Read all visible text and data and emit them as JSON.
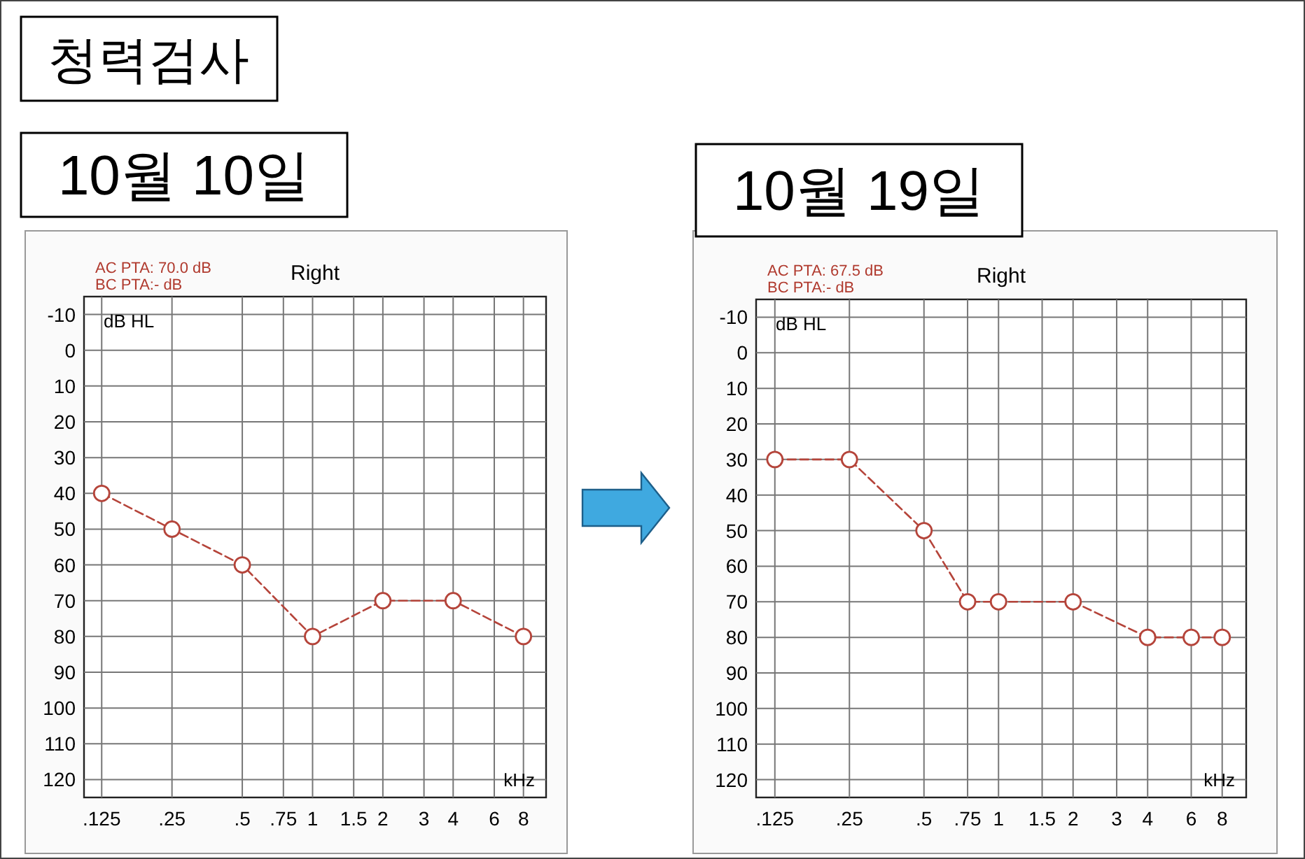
{
  "chart_data": [
    {
      "type": "line",
      "title": "10월 10일",
      "subtitle": "Right",
      "xlabel": "kHz",
      "ylabel": "dB HL",
      "annotations": [
        "청력검사",
        "AC PTA: 70.0 dB",
        "BC PTA:- dB"
      ],
      "log": "x",
      "xlim": [
        0.105,
        10
      ],
      "ylim": [
        125,
        -15
      ],
      "xticks": [
        {
          "value": 0.125,
          "label": ".125"
        },
        {
          "value": 0.25,
          "label": ".25"
        },
        {
          "value": 0.5,
          "label": ".5"
        },
        {
          "value": 0.75,
          "label": ".75"
        },
        1,
        1.5,
        2,
        3,
        4,
        6,
        8
      ],
      "yticks": [
        -10,
        0,
        10,
        20,
        30,
        40,
        50,
        60,
        70,
        80,
        90,
        100,
        110,
        120
      ],
      "grid": true,
      "marker": "circle",
      "line_style": "dashed",
      "series": [
        {
          "color": "#b5443a",
          "x": [
            0.125,
            0.25,
            0.5,
            1,
            2,
            4,
            8
          ],
          "values": [
            40,
            50,
            60,
            80,
            70,
            70,
            80
          ]
        }
      ]
    },
    {
      "type": "line",
      "title": "10월 19일",
      "subtitle": "Right",
      "xlabel": "kHz",
      "ylabel": "dB HL",
      "annotations": [
        "AC PTA: 67.5 dB",
        "BC PTA:- dB"
      ],
      "log": "x",
      "xlim": [
        0.105,
        10
      ],
      "ylim": [
        125,
        -15
      ],
      "xticks": [
        {
          "value": 0.125,
          "label": ".125"
        },
        {
          "value": 0.25,
          "label": ".25"
        },
        {
          "value": 0.5,
          "label": ".5"
        },
        {
          "value": 0.75,
          "label": ".75"
        },
        1,
        1.5,
        2,
        3,
        4,
        6,
        8
      ],
      "yticks": [
        -10,
        0,
        10,
        20,
        30,
        40,
        50,
        60,
        70,
        80,
        90,
        100,
        110,
        120
      ],
      "grid": true,
      "marker": "circle",
      "line_style": "dashed",
      "series": [
        {
          "color": "#b5443a",
          "x": [
            0.125,
            0.25,
            0.5,
            0.75,
            1,
            2,
            4,
            6,
            8
          ],
          "values": [
            30,
            30,
            50,
            70,
            70,
            70,
            80,
            80,
            80
          ]
        }
      ]
    }
  ]
}
